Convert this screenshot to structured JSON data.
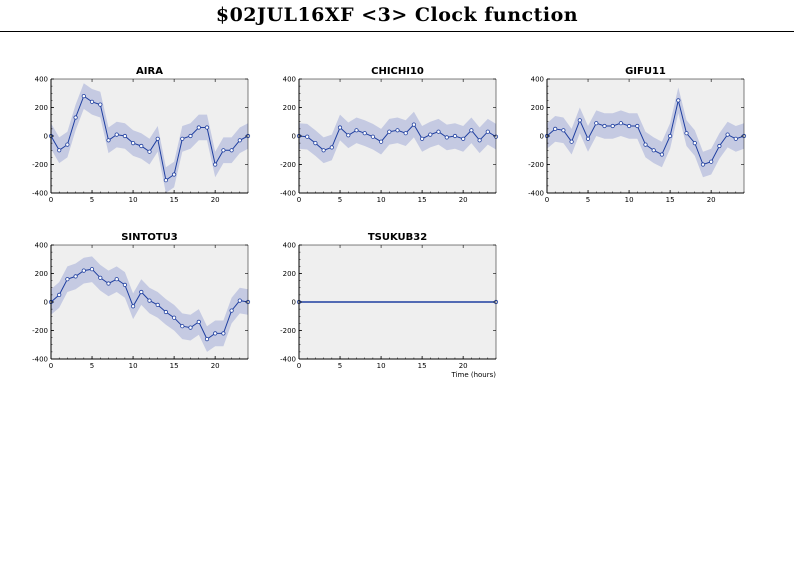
{
  "page": {
    "title": "$02JUL16XF <3>  Clock function"
  },
  "chart_data": [
    {
      "type": "line",
      "title": "AIRA",
      "xlim": [
        0,
        24
      ],
      "ylim": [
        -400,
        400
      ],
      "xticks": [
        0,
        5,
        10,
        15,
        20
      ],
      "yticks": [
        -400,
        -200,
        0,
        200,
        400
      ],
      "xlabel": "",
      "x": [
        0,
        1,
        2,
        3,
        4,
        5,
        6,
        7,
        8,
        9,
        10,
        11,
        12,
        13,
        14,
        15,
        16,
        17,
        18,
        19,
        20,
        21,
        22,
        23,
        24
      ],
      "values": [
        0,
        -100,
        -60,
        130,
        280,
        240,
        220,
        -30,
        10,
        0,
        -50,
        -70,
        -110,
        -20,
        -310,
        -270,
        -20,
        0,
        60,
        60,
        -200,
        -100,
        -100,
        -30,
        0
      ],
      "band": 90
    },
    {
      "type": "line",
      "title": "CHICHI10",
      "xlim": [
        0,
        24
      ],
      "ylim": [
        -400,
        400
      ],
      "xticks": [
        0,
        5,
        10,
        15,
        20
      ],
      "yticks": [
        -400,
        -200,
        0,
        200,
        400
      ],
      "xlabel": "",
      "x": [
        0,
        1,
        2,
        3,
        4,
        5,
        6,
        7,
        8,
        9,
        10,
        11,
        12,
        13,
        14,
        15,
        16,
        17,
        18,
        19,
        20,
        21,
        22,
        23,
        24
      ],
      "values": [
        0,
        -5,
        -50,
        -100,
        -80,
        60,
        5,
        40,
        20,
        -5,
        -40,
        30,
        40,
        20,
        80,
        -20,
        10,
        30,
        -10,
        0,
        -20,
        40,
        -30,
        30,
        -5
      ],
      "band": 90
    },
    {
      "type": "line",
      "title": "GIFU11",
      "xlim": [
        0,
        24
      ],
      "ylim": [
        -400,
        400
      ],
      "xticks": [
        0,
        5,
        10,
        15,
        20
      ],
      "yticks": [
        -400,
        -200,
        0,
        200,
        400
      ],
      "xlabel": "",
      "x": [
        0,
        1,
        2,
        3,
        4,
        5,
        6,
        7,
        8,
        9,
        10,
        11,
        12,
        13,
        14,
        15,
        16,
        17,
        18,
        19,
        20,
        21,
        22,
        23,
        24
      ],
      "values": [
        0,
        50,
        40,
        -40,
        110,
        -20,
        90,
        70,
        70,
        90,
        70,
        70,
        -60,
        -100,
        -130,
        0,
        250,
        20,
        -50,
        -200,
        -180,
        -70,
        10,
        -20,
        0
      ],
      "band": 90
    },
    {
      "type": "line",
      "title": "SINTOTU3",
      "xlim": [
        0,
        24
      ],
      "ylim": [
        -400,
        400
      ],
      "xticks": [
        0,
        5,
        10,
        15,
        20
      ],
      "yticks": [
        -400,
        -200,
        0,
        200,
        400
      ],
      "xlabel": "",
      "x": [
        0,
        1,
        2,
        3,
        4,
        5,
        6,
        7,
        8,
        9,
        10,
        11,
        12,
        13,
        14,
        15,
        16,
        17,
        18,
        19,
        20,
        21,
        22,
        23,
        24
      ],
      "values": [
        0,
        50,
        160,
        180,
        220,
        230,
        170,
        130,
        160,
        120,
        -30,
        70,
        10,
        -20,
        -70,
        -110,
        -170,
        -180,
        -140,
        -260,
        -220,
        -220,
        -60,
        10,
        0
      ],
      "band": 90
    },
    {
      "type": "line",
      "title": "TSUKUB32",
      "xlim": [
        0,
        24
      ],
      "ylim": [
        -400,
        400
      ],
      "xticks": [
        0,
        5,
        10,
        15,
        20
      ],
      "yticks": [
        -400,
        -200,
        0,
        200,
        400
      ],
      "xlabel": "Time (hours)",
      "x": [
        0,
        24
      ],
      "values": [
        0,
        0
      ],
      "band": 0
    }
  ],
  "colors": {
    "line": "#1f3fa0",
    "band": "#c5cae2",
    "plot_bg": "#efefef",
    "axis": "#000000"
  }
}
